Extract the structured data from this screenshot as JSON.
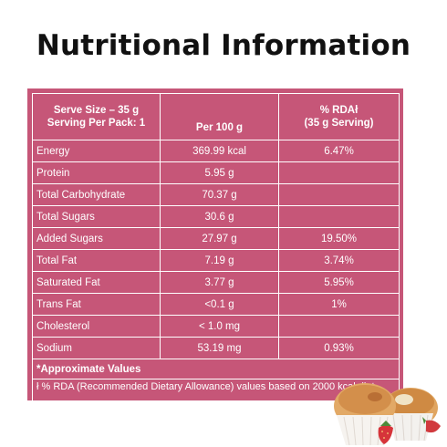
{
  "title": "Nutritional Information",
  "header": {
    "serve_line1": "Serve Size – 35 g",
    "serve_line2": "Serving Per Pack: 1",
    "per100": "Per 100 g",
    "rda_line1": "% RDAł",
    "rda_line2": "(35 g Serving)"
  },
  "rows": [
    {
      "name": "Energy",
      "per100": "369.99 kcal",
      "rda": "6.47%"
    },
    {
      "name": "Protein",
      "per100": "5.95 g",
      "rda": ""
    },
    {
      "name": "Total Carbohydrate",
      "per100": "70.37 g",
      "rda": ""
    },
    {
      "name": "Total Sugars",
      "per100": "30.6 g",
      "rda": ""
    },
    {
      "name": "Added Sugars",
      "per100": "27.97 g",
      "rda": "19.50%"
    },
    {
      "name": "Total Fat",
      "per100": "7.19 g",
      "rda": "3.74%"
    },
    {
      "name": "Saturated Fat",
      "per100": "3.77 g",
      "rda": "5.95%"
    },
    {
      "name": "Trans Fat",
      "per100": "<0.1 g",
      "rda": "1%"
    },
    {
      "name": "Cholesterol",
      "per100": "< 1.0 mg",
      "rda": ""
    },
    {
      "name": "Sodium",
      "per100": "53.19 mg",
      "rda": "0.93%"
    }
  ],
  "approx_note": "*Approximate Values",
  "rda_note": "ł % RDA (Recommended Dietary Allowance) values based on 2000 kcal diet.",
  "colors": {
    "table_bg": "#c65678",
    "text": "#ffffff",
    "title": "#111111"
  }
}
